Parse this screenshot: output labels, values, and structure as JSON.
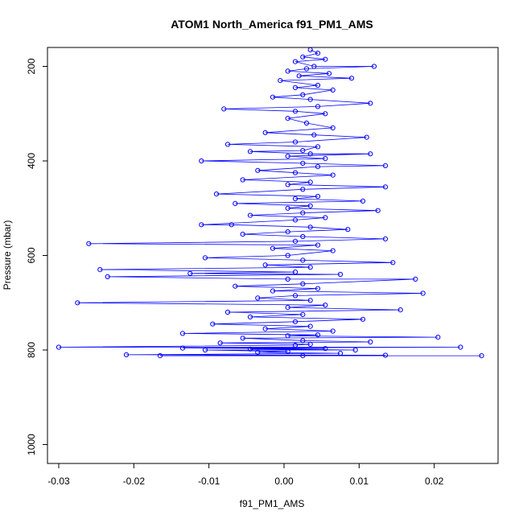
{
  "chart_data": {
    "type": "scatter",
    "title": "ATOM1 North_America f91_PM1_AMS",
    "xlabel": "f91_PM1_AMS",
    "ylabel": "Pressure (mbar)",
    "xlim": [
      -0.0315,
      0.0285
    ],
    "ylim": [
      1040,
      160
    ],
    "y_reversed": true,
    "x_ticks": [
      -0.03,
      -0.02,
      -0.01,
      0.0,
      0.01,
      0.02
    ],
    "x_tick_labels": [
      "-0.03",
      "-0.02",
      "-0.01",
      "0.00",
      "0.01",
      "0.02"
    ],
    "y_ticks": [
      200,
      400,
      600,
      800,
      1000
    ],
    "y_tick_labels": [
      "200",
      "400",
      "600",
      "800",
      "1000"
    ],
    "grid": false,
    "legend": "none",
    "series": [
      {
        "marker": "open-circle",
        "connected": true,
        "color": "#0000ff",
        "points": [
          [
            0.0035,
            165
          ],
          [
            0.0045,
            172
          ],
          [
            0.0025,
            180
          ],
          [
            0.0055,
            185
          ],
          [
            0.0015,
            190
          ],
          [
            0.004,
            200
          ],
          [
            0.012,
            200
          ],
          [
            0.003,
            205
          ],
          [
            0.0005,
            210
          ],
          [
            0.006,
            215
          ],
          [
            0.002,
            220
          ],
          [
            0.009,
            225
          ],
          [
            -0.0005,
            230
          ],
          [
            0.0045,
            240
          ],
          [
            0.0015,
            245
          ],
          [
            0.0065,
            250
          ],
          [
            0.0025,
            260
          ],
          [
            -0.0015,
            265
          ],
          [
            0.0035,
            270
          ],
          [
            0.0115,
            278
          ],
          [
            0.0045,
            285
          ],
          [
            -0.008,
            290
          ],
          [
            0.0015,
            295
          ],
          [
            0.0055,
            300
          ],
          [
            0.0005,
            310
          ],
          [
            0.003,
            320
          ],
          [
            0.0065,
            330
          ],
          [
            -0.0025,
            340
          ],
          [
            0.004,
            345
          ],
          [
            0.011,
            350
          ],
          [
            0.0015,
            360
          ],
          [
            -0.0075,
            365
          ],
          [
            0.0045,
            370
          ],
          [
            0.0025,
            378
          ],
          [
            -0.0045,
            380
          ],
          [
            0.0035,
            385
          ],
          [
            0.0115,
            385
          ],
          [
            0.0005,
            390
          ],
          [
            0.0055,
            395
          ],
          [
            -0.011,
            400
          ],
          [
            0.0025,
            405
          ],
          [
            0.0135,
            410
          ],
          [
            0.0045,
            412
          ],
          [
            -0.0035,
            420
          ],
          [
            0.0015,
            425
          ],
          [
            0.0065,
            430
          ],
          [
            -0.0055,
            440
          ],
          [
            0.0035,
            445
          ],
          [
            0.0005,
            450
          ],
          [
            0.0135,
            455
          ],
          [
            0.0025,
            460
          ],
          [
            -0.009,
            470
          ],
          [
            0.0045,
            475
          ],
          [
            0.0015,
            480
          ],
          [
            0.0105,
            485
          ],
          [
            -0.0065,
            490
          ],
          [
            0.0035,
            495
          ],
          [
            0.0005,
            500
          ],
          [
            0.0125,
            505
          ],
          [
            0.0025,
            510
          ],
          [
            -0.0045,
            515
          ],
          [
            0.0055,
            520
          ],
          [
            0.0015,
            525
          ],
          [
            -0.011,
            535
          ],
          [
            -0.007,
            535
          ],
          [
            0.0035,
            540
          ],
          [
            0.0085,
            545
          ],
          [
            0.0005,
            550
          ],
          [
            -0.0055,
            555
          ],
          [
            0.0025,
            560
          ],
          [
            0.0135,
            565
          ],
          [
            0.0015,
            570
          ],
          [
            -0.026,
            575
          ],
          [
            0.0045,
            578
          ],
          [
            -0.0015,
            585
          ],
          [
            0.0065,
            590
          ],
          [
            0.0005,
            600
          ],
          [
            -0.0105,
            605
          ],
          [
            0.0025,
            610
          ],
          [
            0.0145,
            615
          ],
          [
            -0.0025,
            620
          ],
          [
            0.0035,
            625
          ],
          [
            -0.0245,
            630
          ],
          [
            0.0015,
            635
          ],
          [
            -0.0125,
            638
          ],
          [
            0.0075,
            640
          ],
          [
            -0.0235,
            645
          ],
          [
            0.0005,
            650
          ],
          [
            0.0175,
            650
          ],
          [
            0.0025,
            660
          ],
          [
            -0.0065,
            665
          ],
          [
            0.0045,
            670
          ],
          [
            -0.0015,
            675
          ],
          [
            0.0185,
            680
          ],
          [
            0.0015,
            685
          ],
          [
            -0.0035,
            690
          ],
          [
            0.0035,
            695
          ],
          [
            -0.0275,
            700
          ],
          [
            0.0055,
            705
          ],
          [
            0.0005,
            710
          ],
          [
            0.0155,
            715
          ],
          [
            -0.0075,
            720
          ],
          [
            0.0025,
            725
          ],
          [
            -0.0045,
            730
          ],
          [
            0.0105,
            735
          ],
          [
            0.0015,
            740
          ],
          [
            -0.0095,
            745
          ],
          [
            0.0035,
            750
          ],
          [
            -0.0025,
            755
          ],
          [
            0.0065,
            760
          ],
          [
            -0.0135,
            765
          ],
          [
            0.0045,
            768
          ],
          [
            0.0005,
            770
          ],
          [
            0.0205,
            773
          ],
          [
            -0.0055,
            775
          ],
          [
            0.0025,
            780
          ],
          [
            0.0115,
            783
          ],
          [
            -0.0085,
            785
          ],
          [
            0.0035,
            788
          ],
          [
            0.0015,
            790
          ],
          [
            -0.03,
            794
          ],
          [
            0.0235,
            794
          ],
          [
            -0.0135,
            796
          ],
          [
            0.0055,
            797
          ],
          [
            -0.0045,
            798
          ],
          [
            0.0095,
            800
          ],
          [
            -0.0105,
            800
          ],
          [
            0.0005,
            803
          ],
          [
            -0.0035,
            805
          ],
          [
            0.0075,
            807
          ],
          [
            -0.021,
            810
          ],
          [
            0.0135,
            811
          ],
          [
            -0.0165,
            812
          ],
          [
            0.0263,
            812
          ],
          [
            0.0025,
            812
          ]
        ]
      }
    ]
  }
}
